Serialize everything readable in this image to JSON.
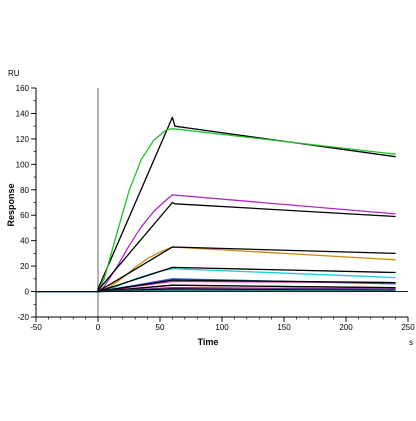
{
  "chart_data": {
    "type": "line",
    "title": "",
    "xlabel": "Time",
    "ylabel": "Response",
    "y_unit": "RU",
    "x_unit": "s",
    "xlim": [
      -50,
      250
    ],
    "ylim": [
      -20,
      160
    ],
    "xticks": [
      -50,
      0,
      50,
      100,
      150,
      200,
      250
    ],
    "yticks": [
      -20,
      0,
      20,
      40,
      60,
      80,
      100,
      120,
      140,
      160
    ],
    "x_minor_step": 10,
    "y_minor_step": 10,
    "grid": false,
    "legend": "none",
    "series": [
      {
        "color": "#000000",
        "points": [
          [
            -50,
            0
          ],
          [
            0,
            0
          ],
          [
            0,
            2
          ],
          [
            60,
            137
          ],
          [
            62,
            130
          ],
          [
            240,
            106
          ]
        ]
      },
      {
        "color": "#22c02a",
        "points": [
          [
            -50,
            0
          ],
          [
            0,
            0
          ],
          [
            5,
            10
          ],
          [
            15,
            45
          ],
          [
            25,
            79
          ],
          [
            35,
            104
          ],
          [
            45,
            119
          ],
          [
            55,
            127
          ],
          [
            60,
            128
          ],
          [
            240,
            108
          ]
        ]
      },
      {
        "color": "#b026c8",
        "points": [
          [
            -50,
            0
          ],
          [
            0,
            0
          ],
          [
            5,
            4
          ],
          [
            15,
            19
          ],
          [
            25,
            36
          ],
          [
            35,
            51
          ],
          [
            45,
            63
          ],
          [
            55,
            72
          ],
          [
            60,
            76
          ],
          [
            240,
            61
          ]
        ]
      },
      {
        "color": "#000000",
        "points": [
          [
            -50,
            0
          ],
          [
            0,
            0
          ],
          [
            0,
            1
          ],
          [
            60,
            70
          ],
          [
            62,
            69
          ],
          [
            240,
            59
          ]
        ]
      },
      {
        "color": "#cc8a10",
        "points": [
          [
            -50,
            0
          ],
          [
            0,
            0
          ],
          [
            10,
            4
          ],
          [
            20,
            11
          ],
          [
            30,
            19
          ],
          [
            40,
            26
          ],
          [
            50,
            31
          ],
          [
            60,
            35
          ],
          [
            240,
            25
          ]
        ]
      },
      {
        "color": "#000000",
        "points": [
          [
            -50,
            0
          ],
          [
            0,
            0
          ],
          [
            60,
            35
          ],
          [
            240,
            30
          ]
        ]
      },
      {
        "color": "#1ccfd8",
        "points": [
          [
            -50,
            0
          ],
          [
            0,
            0
          ],
          [
            10,
            2
          ],
          [
            20,
            6
          ],
          [
            30,
            10
          ],
          [
            40,
            13
          ],
          [
            50,
            16
          ],
          [
            60,
            18
          ],
          [
            240,
            11
          ]
        ]
      },
      {
        "color": "#000000",
        "points": [
          [
            -50,
            0
          ],
          [
            0,
            0
          ],
          [
            60,
            19
          ],
          [
            240,
            15
          ]
        ]
      },
      {
        "color": "#2060e0",
        "points": [
          [
            -50,
            0
          ],
          [
            0,
            0
          ],
          [
            60,
            10
          ],
          [
            240,
            6
          ]
        ]
      },
      {
        "color": "#d81e9a",
        "points": [
          [
            -50,
            0
          ],
          [
            0,
            0
          ],
          [
            60,
            8
          ],
          [
            240,
            7
          ]
        ]
      },
      {
        "color": "#000000",
        "points": [
          [
            -50,
            0
          ],
          [
            0,
            0
          ],
          [
            60,
            9
          ],
          [
            240,
            7
          ]
        ]
      },
      {
        "color": "#e02020",
        "points": [
          [
            -50,
            0
          ],
          [
            0,
            0
          ],
          [
            60,
            5
          ],
          [
            240,
            3
          ]
        ]
      },
      {
        "color": "#000000",
        "points": [
          [
            -50,
            0
          ],
          [
            0,
            0
          ],
          [
            60,
            5
          ],
          [
            240,
            3
          ]
        ]
      },
      {
        "color": "#7030a0",
        "points": [
          [
            -50,
            0
          ],
          [
            0,
            0
          ],
          [
            60,
            3
          ],
          [
            240,
            2
          ]
        ]
      },
      {
        "color": "#000000",
        "points": [
          [
            -50,
            0
          ],
          [
            0,
            0
          ],
          [
            60,
            2
          ],
          [
            240,
            1
          ]
        ]
      },
      {
        "color": "#1a8a8a",
        "points": [
          [
            -50,
            0
          ],
          [
            0,
            0
          ],
          [
            60,
            1
          ],
          [
            240,
            0.5
          ]
        ]
      }
    ]
  }
}
